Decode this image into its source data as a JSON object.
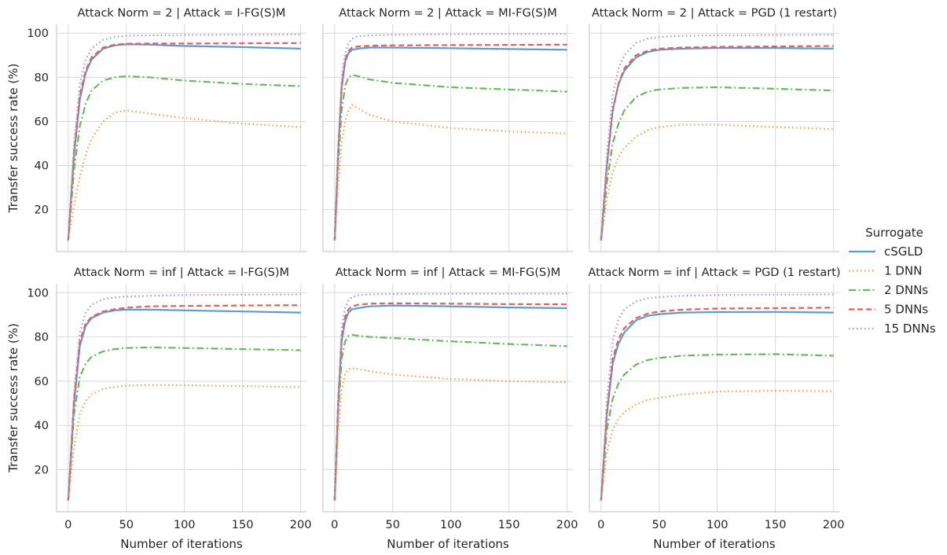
{
  "chart_data": {
    "type": "line",
    "y_axis_label": "Transfer success rate (%)",
    "x_axis_label": "Number of iterations",
    "xlim": [
      -10,
      205
    ],
    "ylim": [
      1,
      104
    ],
    "x_ticks": [
      0,
      50,
      100,
      150,
      200
    ],
    "y_ticks": [
      20,
      40,
      60,
      80,
      100
    ],
    "grid": true,
    "legend": {
      "title": "Surrogate",
      "placement": "right",
      "entries": [
        "cSGLD",
        "1 DNN",
        "2 DNNs",
        "5 DNNs",
        "15 DNNs"
      ]
    },
    "series_styles": {
      "cSGLD": {
        "color": "#5b9bd5",
        "dash": "solid"
      },
      "1 DNN": {
        "color": "#f5a04a",
        "dash": "dotted"
      },
      "2 DNNs": {
        "color": "#65bb5e",
        "dash": "dashdot"
      },
      "5 DNNs": {
        "color": "#e0605a",
        "dash": "dashed"
      },
      "15 DNNs": {
        "color": "#b08fd6",
        "dash": "dotted"
      }
    },
    "panels": [
      {
        "title": "Attack Norm = 2 | Attack = I-FG(S)M",
        "series": [
          {
            "name": "cSGLD",
            "x": [
              0,
              5,
              10,
              15,
              20,
              30,
              40,
              50,
              70,
              100,
              150,
              200
            ],
            "y": [
              6,
              45,
              70,
              82,
              88,
              93,
              94.5,
              95,
              94.8,
              94.2,
              93.7,
              93
            ]
          },
          {
            "name": "1 DNN",
            "x": [
              0,
              5,
              10,
              15,
              20,
              30,
              40,
              50,
              70,
              100,
              150,
              200
            ],
            "y": [
              6,
              22,
              35,
              45,
              52,
              60,
              64,
              65,
              63.5,
              61.5,
              59,
              57.5
            ]
          },
          {
            "name": "2 DNNs",
            "x": [
              0,
              5,
              10,
              15,
              20,
              30,
              40,
              50,
              70,
              100,
              150,
              200
            ],
            "y": [
              6,
              38,
              58,
              68,
              74,
              78.5,
              80,
              80.5,
              80,
              78.5,
              77,
              76
            ]
          },
          {
            "name": "5 DNNs",
            "x": [
              0,
              5,
              10,
              15,
              20,
              30,
              40,
              50,
              70,
              100,
              150,
              200
            ],
            "y": [
              6,
              46,
              72,
              83,
              89,
              93.5,
              94.8,
              95.2,
              95.3,
              95.3,
              95.4,
              95.5
            ]
          },
          {
            "name": "15 DNNs",
            "x": [
              0,
              5,
              10,
              15,
              20,
              30,
              40,
              50,
              70,
              100,
              150,
              200
            ],
            "y": [
              6,
              50,
              77,
              88,
              93,
              97,
              98.3,
              98.8,
              99,
              99.2,
              99.3,
              99.4
            ]
          }
        ]
      },
      {
        "title": "Attack Norm = 2 | Attack = MI-FG(S)M",
        "series": [
          {
            "name": "cSGLD",
            "x": [
              0,
              3,
              6,
              9,
              12,
              15,
              20,
              30,
              50,
              100,
              150,
              200
            ],
            "y": [
              6,
              45,
              75,
              87,
              91,
              92.5,
              93,
              93.5,
              93.5,
              93.2,
              92.8,
              92.5
            ]
          },
          {
            "name": "1 DNN",
            "x": [
              0,
              3,
              6,
              9,
              12,
              15,
              20,
              30,
              50,
              100,
              150,
              200
            ],
            "y": [
              6,
              30,
              50,
              60,
              65,
              67.5,
              66,
              63,
              60,
              57,
              55.5,
              54.5
            ]
          },
          {
            "name": "2 DNNs",
            "x": [
              0,
              3,
              6,
              9,
              12,
              15,
              20,
              30,
              50,
              100,
              150,
              200
            ],
            "y": [
              6,
              40,
              65,
              76,
              80,
              81,
              80.5,
              79,
              77.5,
              75.5,
              74.5,
              73.5
            ]
          },
          {
            "name": "5 DNNs",
            "x": [
              0,
              3,
              6,
              9,
              12,
              15,
              20,
              30,
              50,
              100,
              150,
              200
            ],
            "y": [
              6,
              46,
              76,
              88,
              92,
              93.5,
              94,
              94.3,
              94.5,
              94.6,
              94.7,
              94.8
            ]
          },
          {
            "name": "15 DNNs",
            "x": [
              0,
              3,
              6,
              9,
              12,
              15,
              20,
              30,
              50,
              100,
              150,
              200
            ],
            "y": [
              6,
              48,
              80,
              91,
              95.5,
              97.5,
              98.5,
              99,
              99.3,
              99.5,
              99.6,
              99.7
            ]
          }
        ]
      },
      {
        "title": "Attack Norm = 2 | Attack = PGD (1 restart)",
        "series": [
          {
            "name": "cSGLD",
            "x": [
              0,
              5,
              10,
              15,
              20,
              30,
              40,
              50,
              70,
              100,
              150,
              200
            ],
            "y": [
              6,
              40,
              65,
              77,
              83,
              89,
              91.5,
              92.5,
              93,
              93.3,
              93.3,
              93
            ]
          },
          {
            "name": "1 DNN",
            "x": [
              0,
              5,
              10,
              15,
              20,
              30,
              40,
              50,
              70,
              100,
              150,
              200
            ],
            "y": [
              6,
              25,
              37,
              44,
              48,
              53,
              56,
              57.5,
              58.5,
              58.5,
              57.5,
              56.5
            ]
          },
          {
            "name": "2 DNNs",
            "x": [
              0,
              5,
              10,
              15,
              20,
              30,
              40,
              50,
              70,
              100,
              150,
              200
            ],
            "y": [
              6,
              32,
              50,
              59,
              65,
              71,
              73.5,
              74.5,
              75.2,
              75.5,
              74.8,
              74
            ]
          },
          {
            "name": "5 DNNs",
            "x": [
              0,
              5,
              10,
              15,
              20,
              30,
              40,
              50,
              70,
              100,
              150,
              200
            ],
            "y": [
              6,
              40,
              65,
              77,
              84,
              90,
              92,
              93,
              93.5,
              93.8,
              94,
              94.2
            ]
          },
          {
            "name": "15 DNNs",
            "x": [
              0,
              5,
              10,
              15,
              20,
              30,
              40,
              50,
              70,
              100,
              150,
              200
            ],
            "y": [
              6,
              45,
              72,
              84,
              90,
              95.5,
              97.5,
              98.3,
              98.8,
              99,
              99.2,
              99.3
            ]
          }
        ]
      },
      {
        "title": "Attack Norm = inf | Attack = I-FG(S)M",
        "series": [
          {
            "name": "cSGLD",
            "x": [
              0,
              5,
              10,
              15,
              20,
              30,
              40,
              50,
              70,
              100,
              150,
              200
            ],
            "y": [
              6,
              50,
              76,
              85,
              88.5,
              91,
              92,
              92.3,
              92.3,
              92,
              91.5,
              91
            ]
          },
          {
            "name": "1 DNN",
            "x": [
              0,
              5,
              10,
              15,
              20,
              30,
              40,
              50,
              70,
              100,
              150,
              200
            ],
            "y": [
              6,
              30,
              45,
              51,
              54,
              56.5,
              57.5,
              58,
              58.3,
              58.2,
              57.8,
              57.3
            ]
          },
          {
            "name": "2 DNNs",
            "x": [
              0,
              5,
              10,
              15,
              20,
              30,
              40,
              50,
              70,
              100,
              150,
              200
            ],
            "y": [
              6,
              45,
              62,
              68,
              71,
              73.5,
              74.5,
              75,
              75.3,
              75,
              74.5,
              74
            ]
          },
          {
            "name": "5 DNNs",
            "x": [
              0,
              5,
              10,
              15,
              20,
              30,
              40,
              50,
              70,
              100,
              150,
              200
            ],
            "y": [
              6,
              52,
              78,
              86,
              89,
              91.5,
              92.5,
              93.2,
              93.8,
              94,
              94.2,
              94.3
            ]
          },
          {
            "name": "15 DNNs",
            "x": [
              0,
              5,
              10,
              15,
              20,
              30,
              40,
              50,
              70,
              100,
              150,
              200
            ],
            "y": [
              6,
              55,
              82,
              91,
              94.5,
              97,
              97.8,
              98.2,
              98.6,
              98.9,
              99.1,
              99.2
            ]
          }
        ]
      },
      {
        "title": "Attack Norm = inf | Attack = MI-FG(S)M",
        "series": [
          {
            "name": "cSGLD",
            "x": [
              0,
              3,
              6,
              9,
              12,
              15,
              20,
              30,
              50,
              100,
              150,
              200
            ],
            "y": [
              6,
              48,
              78,
              87,
              91,
              92.5,
              93,
              93.8,
              94.2,
              93.8,
              93.3,
              93
            ]
          },
          {
            "name": "1 DNN",
            "x": [
              0,
              3,
              6,
              9,
              12,
              15,
              20,
              30,
              50,
              100,
              150,
              200
            ],
            "y": [
              6,
              35,
              56,
              63,
              65.5,
              65.8,
              65.5,
              64.5,
              63,
              61,
              60,
              59.5
            ]
          },
          {
            "name": "2 DNNs",
            "x": [
              0,
              3,
              6,
              9,
              12,
              15,
              20,
              30,
              50,
              100,
              150,
              200
            ],
            "y": [
              6,
              45,
              70,
              78,
              80.5,
              81,
              80.5,
              80,
              79.5,
              78,
              76.8,
              75.8
            ]
          },
          {
            "name": "5 DNNs",
            "x": [
              0,
              3,
              6,
              9,
              12,
              15,
              20,
              30,
              50,
              100,
              150,
              200
            ],
            "y": [
              6,
              50,
              80,
              89,
              92.5,
              93.8,
              94.5,
              95,
              95.2,
              95,
              94.8,
              94.7
            ]
          },
          {
            "name": "15 DNNs",
            "x": [
              0,
              3,
              6,
              9,
              12,
              15,
              20,
              30,
              50,
              100,
              150,
              200
            ],
            "y": [
              6,
              52,
              84,
              93,
              96.5,
              98,
              98.8,
              99.2,
              99.4,
              99.5,
              99.5,
              99.6
            ]
          }
        ]
      },
      {
        "title": "Attack Norm = inf | Attack = PGD (1 restart)",
        "series": [
          {
            "name": "cSGLD",
            "x": [
              0,
              5,
              10,
              15,
              20,
              30,
              40,
              50,
              70,
              100,
              150,
              200
            ],
            "y": [
              6,
              45,
              68,
              77,
              82,
              87.5,
              89.5,
              90.3,
              91,
              91.2,
              91.3,
              91
            ]
          },
          {
            "name": "1 DNN",
            "x": [
              0,
              5,
              10,
              15,
              20,
              30,
              40,
              50,
              70,
              100,
              150,
              200
            ],
            "y": [
              6,
              28,
              38,
              43,
              46,
              49.5,
              51.5,
              52.5,
              54,
              55.3,
              55.7,
              55.5
            ]
          },
          {
            "name": "2 DNNs",
            "x": [
              0,
              5,
              10,
              15,
              20,
              30,
              40,
              50,
              70,
              100,
              150,
              200
            ],
            "y": [
              6,
              38,
              52,
              59,
              63,
              67.5,
              69.5,
              70.5,
              71.5,
              72,
              72.2,
              71.5
            ]
          },
          {
            "name": "5 DNNs",
            "x": [
              0,
              5,
              10,
              15,
              20,
              30,
              40,
              50,
              70,
              100,
              150,
              200
            ],
            "y": [
              6,
              46,
              70,
              79,
              84,
              88.5,
              90.5,
              91.5,
              92.3,
              92.8,
              93,
              93.2
            ]
          },
          {
            "name": "15 DNNs",
            "x": [
              0,
              5,
              10,
              15,
              20,
              30,
              40,
              50,
              70,
              100,
              150,
              200
            ],
            "y": [
              6,
              52,
              78,
              88,
              92.5,
              96,
              97.5,
              98,
              98.6,
              98.9,
              99.1,
              99.2
            ]
          }
        ]
      }
    ]
  }
}
